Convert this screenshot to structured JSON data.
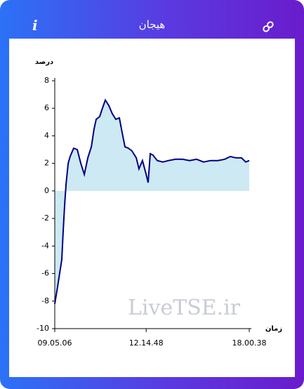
{
  "header": {
    "title": "هیجان",
    "info": "i"
  },
  "chart_data": {
    "type": "line",
    "y_label": "درصد",
    "x_label": "زمان",
    "watermark": "LiveTSE.ir",
    "x": [
      0,
      1.4,
      2.5,
      3.6,
      4.3,
      5.1,
      5.8,
      6.9,
      7.9,
      9.7,
      11.6,
      13.4,
      15.2,
      17,
      18.8,
      20.2,
      21.3,
      23.1,
      24.5,
      26,
      27.8,
      29.6,
      31.4,
      33.2,
      34.7,
      36.1,
      37.9,
      39.7,
      41.9,
      43.3,
      45.1,
      47,
      48,
      49.1,
      50.5,
      52.7,
      55.6,
      58.5,
      62.1,
      65.7,
      69.3,
      72.9,
      76.5,
      80.1,
      83.8,
      87.4,
      90.3,
      93.1,
      96,
      98.2,
      100
    ],
    "series": [
      {
        "color": "#000080",
        "fill": "#cde9f3",
        "values": [
          -8.2,
          -7,
          -6,
          -5,
          -3,
          -1,
          0.5,
          2,
          2.5,
          3.1,
          3,
          2,
          1.2,
          2.4,
          3.2,
          4.5,
          5.2,
          5.4,
          6,
          6.6,
          6.2,
          5.6,
          5.2,
          5.3,
          4.2,
          3.2,
          3.1,
          2.9,
          2.4,
          1.6,
          2.2,
          1.2,
          0.6,
          2.7,
          2.6,
          2.2,
          2.1,
          2.2,
          2.3,
          2.3,
          2.2,
          2.3,
          2.1,
          2.2,
          2.2,
          2.3,
          2.5,
          2.4,
          2.4,
          2.1,
          2.2
        ]
      }
    ],
    "xlim": [
      0,
      100
    ],
    "xticks": [
      {
        "value": 0,
        "label": "09.05.06"
      },
      {
        "value": 47,
        "label": "12.14.48"
      },
      {
        "value": 100,
        "label": "18.00.38"
      }
    ],
    "ylim": [
      -10,
      8
    ],
    "yticks": [
      -10,
      -8,
      -6,
      -4,
      -2,
      0,
      2,
      4,
      6,
      8
    ],
    "grid": false
  }
}
